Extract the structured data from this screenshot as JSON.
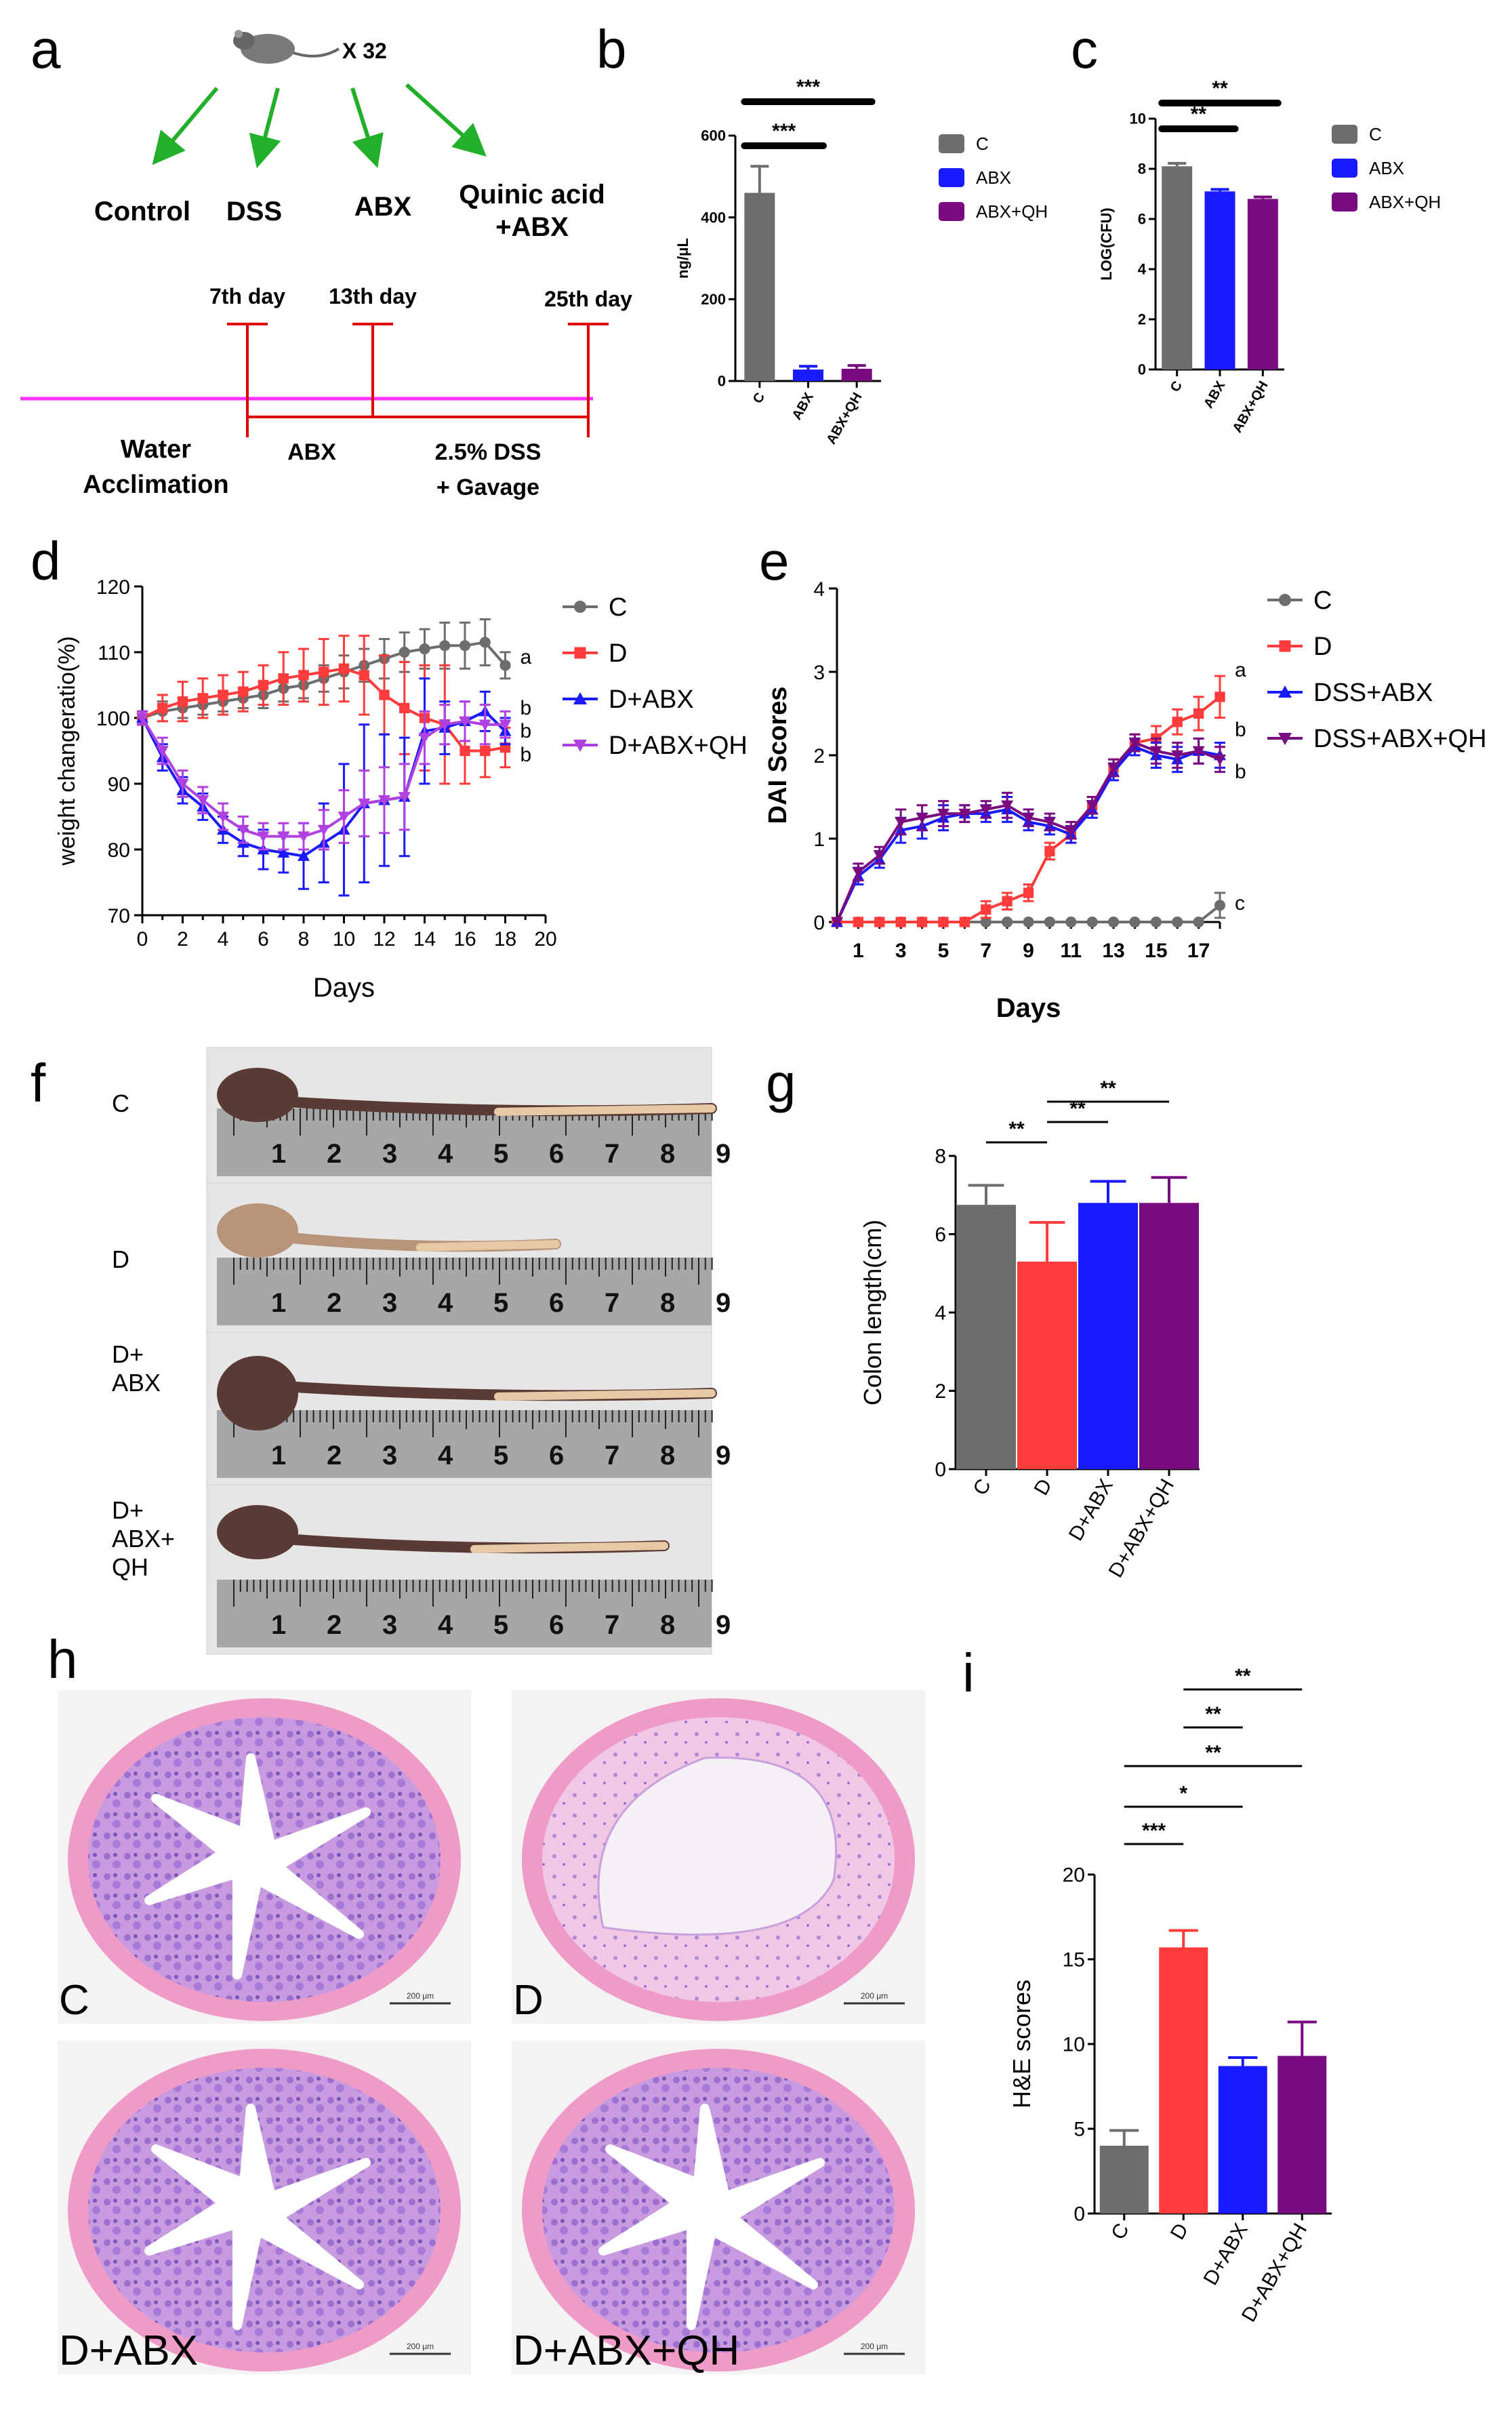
{
  "colors": {
    "C": "#6d6d6d",
    "D": "#ff3b3b",
    "ABX": "#1a1aff",
    "QH": "#7a0a80",
    "QHline": "#b040e0",
    "pink": "#ff33ff",
    "red": "#e00000",
    "green": "#22b02a"
  },
  "panels": {
    "a": {
      "letter": "a",
      "mouse_count": "X 32",
      "groups": [
        "Control",
        "DSS",
        "ABX",
        "Quinic acid\n+ABX"
      ],
      "days": [
        "7th day",
        "13th day",
        "25th day"
      ],
      "phases": [
        "Water\nAcclimation",
        "ABX",
        "2.5% DSS\n+ Gavage"
      ]
    },
    "f": {
      "letter": "f",
      "labels": [
        "C",
        "D",
        "D+\nABX",
        "D+\nABX+\nQH"
      ],
      "ruler_numbers": [
        "1",
        "2",
        "3",
        "4",
        "5",
        "6",
        "7",
        "8",
        "9"
      ]
    },
    "h": {
      "letter": "h",
      "labels": [
        "C",
        "D",
        "D+ABX",
        "D+ABX+QH"
      ],
      "scale_bars": [
        "200 μm",
        "200 μm",
        "200 μm",
        "200 μm"
      ]
    }
  },
  "chart_data": [
    {
      "letter": "b",
      "type": "bar",
      "categories": [
        "C",
        "ABX",
        "ABX+QH"
      ],
      "values": [
        460,
        28,
        30
      ],
      "errors": [
        65,
        8,
        8
      ],
      "colors": [
        "#6d6d6d",
        "#1a1aff",
        "#7a0a80"
      ],
      "ylabel": "ng/μL",
      "ylim": [
        0,
        600
      ],
      "yticks": [
        "0",
        "200",
        "400",
        "600"
      ],
      "legend": [
        "C",
        "ABX",
        "ABX+QH"
      ],
      "significance": [
        {
          "from": 0,
          "to": 1,
          "label": "***"
        },
        {
          "from": 0,
          "to": 2,
          "label": "***"
        }
      ]
    },
    {
      "letter": "c",
      "type": "bar",
      "categories": [
        "C",
        "ABX",
        "ABX+QH"
      ],
      "values": [
        8.1,
        7.1,
        6.8
      ],
      "errors": [
        0.12,
        0.08,
        0.08
      ],
      "colors": [
        "#6d6d6d",
        "#1a1aff",
        "#7a0a80"
      ],
      "ylabel": "LOG(CFU)",
      "ylim": [
        0,
        10
      ],
      "yticks": [
        "0",
        "2",
        "4",
        "6",
        "8",
        "10"
      ],
      "legend": [
        "C",
        "ABX",
        "ABX+QH"
      ],
      "significance": [
        {
          "from": 0,
          "to": 1,
          "label": "**"
        },
        {
          "from": 0,
          "to": 2,
          "label": "**"
        }
      ]
    },
    {
      "letter": "d",
      "type": "line",
      "xlabel": "Days",
      "ylabel": "weight changeratio(%)",
      "xlim": [
        0,
        20
      ],
      "ylim": [
        70,
        120
      ],
      "xticks": [
        "0",
        "2",
        "4",
        "6",
        "8",
        "10",
        "12",
        "14",
        "16",
        "18",
        "20"
      ],
      "yticks": [
        "70",
        "80",
        "90",
        "100",
        "110",
        "120"
      ],
      "series": [
        {
          "name": "C",
          "color": "#6d6d6d",
          "marker": "circle",
          "end_label": "a",
          "x": [
            0,
            1,
            2,
            3,
            4,
            5,
            6,
            7,
            8,
            9,
            10,
            11,
            12,
            13,
            14,
            15,
            16,
            17,
            18
          ],
          "y": [
            100,
            101,
            101.5,
            102,
            102.5,
            103,
            103.5,
            104.5,
            105,
            106,
            107,
            108,
            109,
            110,
            110.5,
            111,
            111,
            111.5,
            108
          ],
          "err": [
            1,
            1.5,
            1.5,
            1.5,
            1.5,
            1.5,
            2,
            2,
            2,
            2,
            2.5,
            2.5,
            3,
            3,
            3,
            3.5,
            3.5,
            3.5,
            2
          ]
        },
        {
          "name": "D",
          "color": "#ff3b3b",
          "marker": "square",
          "end_label": "b",
          "x": [
            0,
            1,
            2,
            3,
            4,
            5,
            6,
            7,
            8,
            9,
            10,
            11,
            12,
            13,
            14,
            15,
            16,
            17,
            18
          ],
          "y": [
            100,
            101.5,
            102.5,
            103,
            103.5,
            104,
            105,
            106,
            106.5,
            107,
            107.5,
            106.5,
            103.5,
            101.5,
            100,
            99,
            95,
            95,
            95.5
          ],
          "err": [
            1,
            2,
            3,
            3,
            3,
            3,
            3,
            4,
            4,
            5,
            5,
            6,
            6,
            7,
            8,
            9,
            5,
            4,
            3
          ]
        },
        {
          "name": "D+ABX",
          "color": "#1a1aff",
          "marker": "triangle-up",
          "end_label": "b",
          "x": [
            0,
            1,
            2,
            3,
            4,
            5,
            6,
            7,
            8,
            9,
            10,
            11,
            12,
            13,
            14,
            15,
            16,
            17,
            18
          ],
          "y": [
            100,
            94,
            89,
            86.5,
            83,
            81,
            80,
            79.5,
            79,
            81,
            83,
            87,
            87.5,
            88,
            98,
            98.5,
            99.5,
            101,
            98
          ],
          "err": [
            1,
            2,
            2,
            2,
            2,
            2,
            3,
            3,
            5,
            6,
            10,
            12,
            10,
            9,
            8,
            4,
            3,
            3,
            2
          ]
        },
        {
          "name": "D+ABX+QH",
          "color": "#b040e0",
          "marker": "triangle-down",
          "end_label": "b",
          "x": [
            0,
            1,
            2,
            3,
            4,
            5,
            6,
            7,
            8,
            9,
            10,
            11,
            12,
            13,
            14,
            15,
            16,
            17,
            18
          ],
          "y": [
            100,
            95,
            90,
            87.5,
            85,
            83,
            82,
            82,
            82,
            83,
            85,
            87,
            87.5,
            88,
            97,
            99,
            99.5,
            99,
            99
          ],
          "err": [
            1,
            2,
            2,
            2,
            2,
            2,
            2,
            2,
            2,
            3,
            4,
            5,
            5,
            5,
            4,
            3,
            3,
            3,
            2
          ]
        }
      ]
    },
    {
      "letter": "e",
      "type": "line",
      "xlabel": "Days",
      "ylabel": "DAI Scores",
      "xlim": [
        0,
        18
      ],
      "ylim": [
        0,
        4
      ],
      "xticks": [
        "1",
        "3",
        "5",
        "7",
        "9",
        "11",
        "13",
        "15",
        "17"
      ],
      "yticks": [
        "0",
        "1",
        "2",
        "3",
        "4"
      ],
      "series": [
        {
          "name": "C",
          "color": "#6d6d6d",
          "marker": "circle",
          "end_label": "c",
          "x": [
            0,
            1,
            2,
            3,
            4,
            5,
            6,
            7,
            8,
            9,
            10,
            11,
            12,
            13,
            14,
            15,
            16,
            17,
            18
          ],
          "y": [
            0,
            0,
            0,
            0,
            0,
            0,
            0,
            0,
            0,
            0,
            0,
            0,
            0,
            0,
            0,
            0,
            0,
            0,
            0.2
          ],
          "err": [
            0,
            0,
            0,
            0,
            0,
            0,
            0,
            0,
            0,
            0,
            0,
            0,
            0,
            0,
            0,
            0,
            0,
            0,
            0.15
          ]
        },
        {
          "name": "D",
          "color": "#ff3b3b",
          "marker": "square",
          "end_label": "a",
          "x": [
            0,
            1,
            2,
            3,
            4,
            5,
            6,
            7,
            8,
            9,
            10,
            11,
            12,
            13,
            14,
            15,
            16,
            17,
            18
          ],
          "y": [
            0,
            0,
            0,
            0,
            0,
            0,
            0,
            0.15,
            0.25,
            0.35,
            0.85,
            1.05,
            1.4,
            1.85,
            2.15,
            2.2,
            2.4,
            2.5,
            2.7
          ],
          "err": [
            0,
            0,
            0,
            0,
            0,
            0,
            0,
            0.1,
            0.1,
            0.1,
            0.1,
            0.1,
            0.1,
            0.1,
            0.1,
            0.15,
            0.15,
            0.2,
            0.25
          ]
        },
        {
          "name": "DSS+ABX",
          "color": "#1a1aff",
          "marker": "triangle-up",
          "end_label": "b",
          "x": [
            0,
            1,
            2,
            3,
            4,
            5,
            6,
            7,
            8,
            9,
            10,
            11,
            12,
            13,
            14,
            15,
            16,
            17,
            18
          ],
          "y": [
            0,
            0.55,
            0.75,
            1.1,
            1.15,
            1.25,
            1.3,
            1.3,
            1.35,
            1.2,
            1.15,
            1.05,
            1.35,
            1.8,
            2.1,
            2.0,
            1.95,
            2.05,
            2.0
          ],
          "err": [
            0,
            0.1,
            0.1,
            0.15,
            0.15,
            0.15,
            0.1,
            0.1,
            0.15,
            0.1,
            0.1,
            0.1,
            0.1,
            0.1,
            0.1,
            0.15,
            0.15,
            0.15,
            0.15
          ]
        },
        {
          "name": "DSS+ABX+QH",
          "color": "#7a0a80",
          "marker": "triangle-down",
          "end_label": "b",
          "x": [
            0,
            1,
            2,
            3,
            4,
            5,
            6,
            7,
            8,
            9,
            10,
            11,
            12,
            13,
            14,
            15,
            16,
            17,
            18
          ],
          "y": [
            0,
            0.6,
            0.8,
            1.2,
            1.25,
            1.3,
            1.3,
            1.35,
            1.4,
            1.25,
            1.2,
            1.1,
            1.4,
            1.85,
            2.15,
            2.05,
            2.0,
            2.05,
            1.95
          ],
          "err": [
            0,
            0.1,
            0.1,
            0.15,
            0.15,
            0.15,
            0.1,
            0.1,
            0.15,
            0.1,
            0.1,
            0.1,
            0.1,
            0.1,
            0.1,
            0.15,
            0.15,
            0.15,
            0.15
          ]
        }
      ]
    },
    {
      "letter": "g",
      "type": "bar",
      "categories": [
        "C",
        "D",
        "D+ABX",
        "D+ABX+QH"
      ],
      "values": [
        6.75,
        5.3,
        6.8,
        6.8
      ],
      "errors": [
        0.5,
        1.0,
        0.55,
        0.65
      ],
      "colors": [
        "#6d6d6d",
        "#ff3b3b",
        "#1a1aff",
        "#7a0a80"
      ],
      "ylabel": "Colon length(cm)",
      "ylim": [
        0,
        8
      ],
      "yticks": [
        "0",
        "2",
        "4",
        "6",
        "8"
      ],
      "significance": [
        {
          "from": 0,
          "to": 1,
          "label": "**"
        },
        {
          "from": 1,
          "to": 2,
          "label": "**"
        },
        {
          "from": 1,
          "to": 3,
          "label": "**"
        }
      ]
    },
    {
      "letter": "i",
      "type": "bar",
      "categories": [
        "C",
        "D",
        "D+ABX",
        "D+ABX+QH"
      ],
      "values": [
        4,
        15.7,
        8.7,
        9.3
      ],
      "errors": [
        0.9,
        1.0,
        0.5,
        2.0
      ],
      "colors": [
        "#6d6d6d",
        "#ff3b3b",
        "#1a1aff",
        "#7a0a80"
      ],
      "ylabel": "H&E scores",
      "ylim": [
        0,
        20
      ],
      "yticks": [
        "0",
        "5",
        "10",
        "15",
        "20"
      ],
      "significance": [
        {
          "from": 0,
          "to": 1,
          "label": "***"
        },
        {
          "from": 0,
          "to": 2,
          "label": "*"
        },
        {
          "from": 0,
          "to": 3,
          "label": "**"
        },
        {
          "from": 1,
          "to": 2,
          "label": "**"
        },
        {
          "from": 1,
          "to": 3,
          "label": "**"
        }
      ]
    }
  ]
}
